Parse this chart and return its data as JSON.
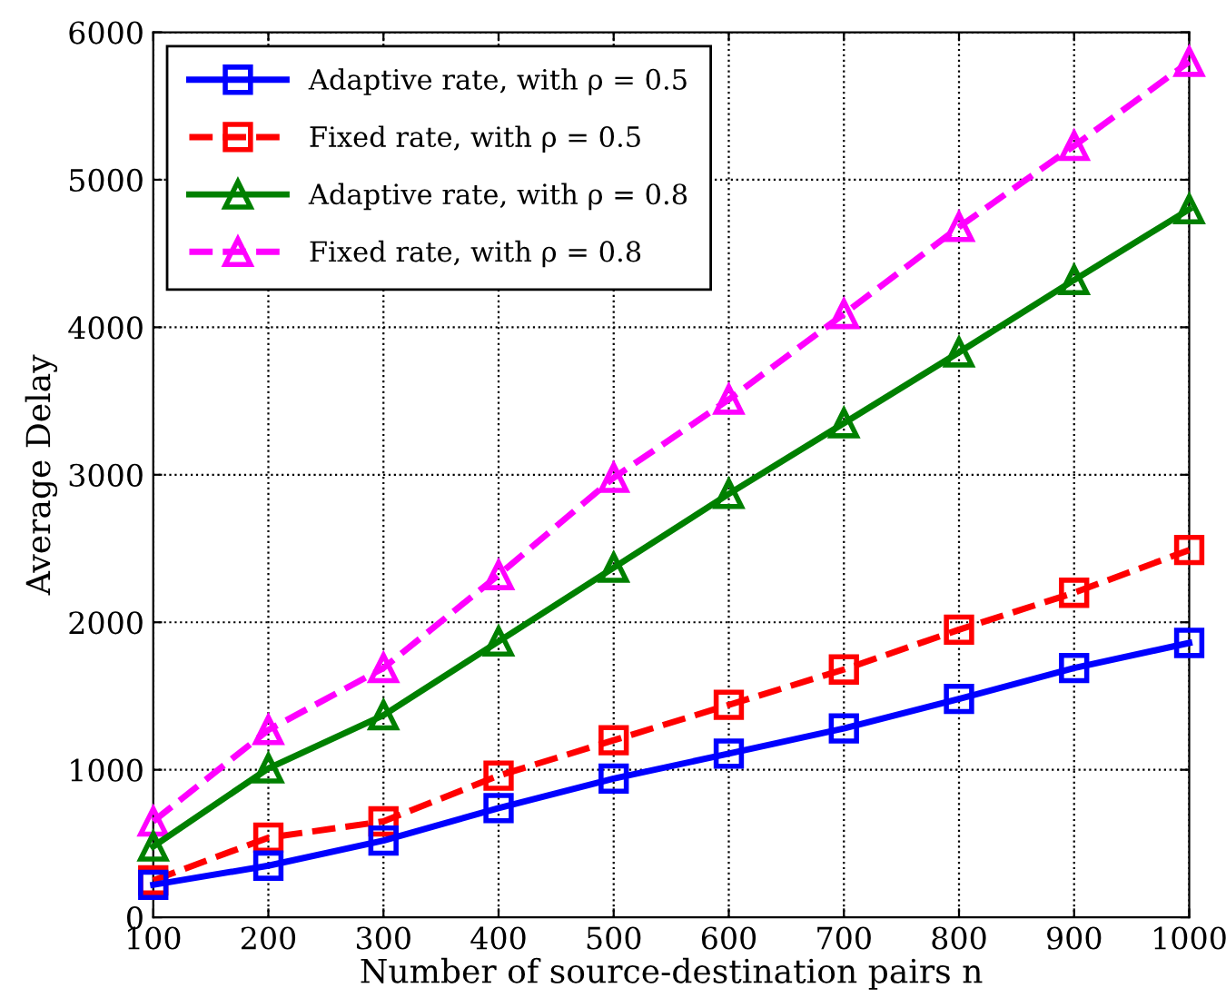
{
  "chart_data": {
    "type": "line",
    "xlabel": "Number of source-destination pairs n",
    "ylabel": "Average Delay",
    "x": [
      100,
      200,
      300,
      400,
      500,
      600,
      700,
      800,
      900,
      1000
    ],
    "series": [
      {
        "name": "Adaptive rate, with ρ = 0.5",
        "color": "#0000ff",
        "marker": "square",
        "line_style": "solid",
        "values": [
          220,
          350,
          520,
          740,
          940,
          1110,
          1280,
          1480,
          1690,
          1860
        ]
      },
      {
        "name": "Fixed rate, with ρ = 0.5",
        "color": "#ff0000",
        "marker": "square",
        "line_style": "dashed",
        "values": [
          250,
          540,
          650,
          960,
          1200,
          1440,
          1680,
          1950,
          2200,
          2490
        ]
      },
      {
        "name": "Adaptive rate, with ρ = 0.8",
        "color": "#008000",
        "marker": "triangle",
        "line_style": "solid",
        "values": [
          480,
          1010,
          1370,
          1870,
          2370,
          2870,
          3350,
          3830,
          4320,
          4800
        ]
      },
      {
        "name": "Fixed rate, with ρ = 0.8",
        "color": "#ff00ff",
        "marker": "triangle",
        "line_style": "dashed",
        "values": [
          650,
          1270,
          1690,
          2320,
          2980,
          3510,
          4090,
          4680,
          5230,
          5800
        ]
      }
    ],
    "xlim": [
      100,
      1000
    ],
    "xticks": [
      100,
      200,
      300,
      400,
      500,
      600,
      700,
      800,
      900,
      1000
    ],
    "ylim": [
      0,
      6000
    ],
    "yticks": [
      0,
      1000,
      2000,
      3000,
      4000,
      5000,
      6000
    ],
    "grid": true,
    "legend": "top left"
  }
}
